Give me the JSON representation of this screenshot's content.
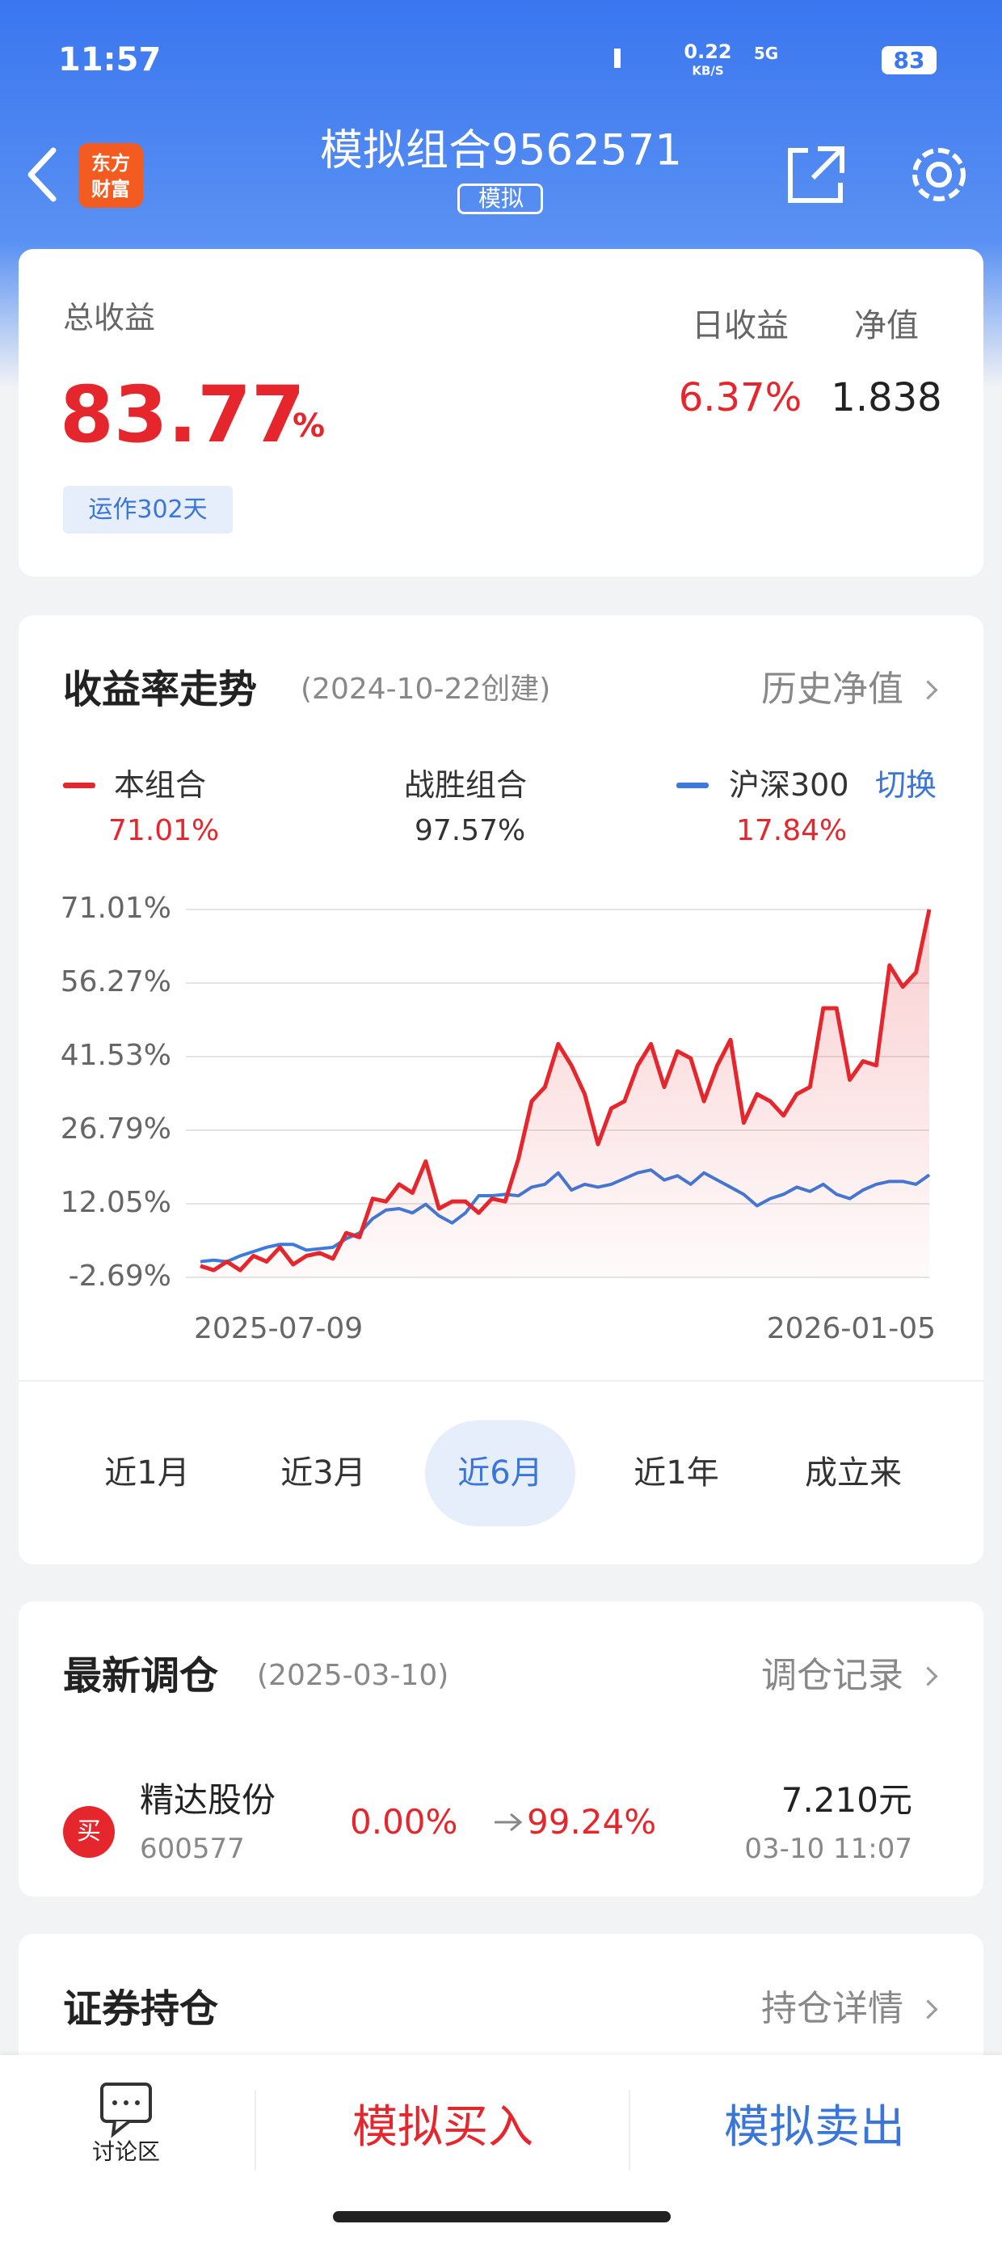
{
  "status_bar": {
    "time": "11:57",
    "net_speed": "0.22",
    "net_unit": "KB/S",
    "network": "5G",
    "battery": "83"
  },
  "header": {
    "title": "模拟组合9562571",
    "badge": "模拟",
    "logo": [
      "东方",
      "财富"
    ]
  },
  "summary": {
    "total_label": "总收益",
    "total_value": "83.77",
    "total_unit": "%",
    "daily_label": "日收益",
    "daily_value": "6.37%",
    "nav_label": "净值",
    "nav_value": "1.838",
    "running": "运作302天"
  },
  "trend": {
    "title": "收益率走势",
    "created": "(2024-10-22创建)",
    "link": "历史净值",
    "switch": "切换",
    "benchmark": {
      "name": "战胜组合",
      "value": "97.57%"
    },
    "periods": [
      "近1月",
      "近3月",
      "近6月",
      "近1年",
      "成立来"
    ],
    "selected_period": 2
  },
  "chart_data": {
    "type": "line",
    "ylim": [
      -2.69,
      71.01
    ],
    "yticks": [
      {
        "value": 71.01,
        "label": "71.01%"
      },
      {
        "value": 56.27,
        "label": "56.27%"
      },
      {
        "value": 41.53,
        "label": "41.53%"
      },
      {
        "value": 26.79,
        "label": "26.79%"
      },
      {
        "value": 12.05,
        "label": "12.05%"
      },
      {
        "value": -2.69,
        "label": "-2.69%"
      }
    ],
    "grid": true,
    "categories": [
      "2025-07-09",
      null,
      null,
      null,
      null,
      null,
      null,
      null,
      null,
      null,
      null,
      null,
      null,
      null,
      null,
      null,
      null,
      null,
      null,
      null,
      null,
      null,
      null,
      null,
      null,
      null,
      null,
      null,
      null,
      null,
      null,
      null,
      null,
      null,
      null,
      null,
      null,
      null,
      null,
      null,
      null,
      null,
      null,
      null,
      null,
      null,
      null,
      null,
      null,
      null,
      null,
      null,
      null,
      null,
      null,
      "2026-01-05"
    ],
    "series": [
      {
        "name": "本组合",
        "color": "#e5262d",
        "latest": "71.01%",
        "values": [
          -0.4,
          -1.26,
          0.46,
          -1.26,
          1.61,
          0.46,
          3.33,
          -0.11,
          1.61,
          2.19,
          1.04,
          6.2,
          5.34,
          13.08,
          12.51,
          15.95,
          14.23,
          20.54,
          11.08,
          12.51,
          12.51,
          10.22,
          13.08,
          12.51,
          21.11,
          32.59,
          35.45,
          44.06,
          39.76,
          34.02,
          23.98,
          31.15,
          32.59,
          39.76,
          44.06,
          35.45,
          42.62,
          41.19,
          32.59,
          39.76,
          44.92,
          28.28,
          34.02,
          32.59,
          29.72,
          34.02,
          35.45,
          51.23,
          51.23,
          36.89,
          40.62,
          39.76,
          59.83,
          55.53,
          58.4,
          71.01
        ]
      },
      {
        "name": "沪深300",
        "color": "#3a7bdc",
        "latest": "17.84%",
        "values": [
          0.46,
          0.75,
          0.46,
          1.61,
          2.47,
          3.33,
          3.91,
          3.91,
          2.76,
          3.05,
          3.33,
          5.05,
          6.2,
          9.07,
          10.79,
          11.08,
          10.22,
          11.94,
          9.64,
          8.21,
          10.22,
          13.66,
          13.66,
          13.94,
          13.66,
          15.38,
          15.95,
          18.25,
          14.8,
          15.95,
          15.38,
          15.95,
          17.1,
          18.25,
          18.82,
          16.81,
          17.67,
          15.95,
          18.25,
          16.81,
          15.38,
          13.94,
          11.65,
          13.08,
          13.94,
          15.38,
          14.52,
          15.95,
          13.94,
          13.08,
          14.8,
          15.95,
          16.53,
          16.53,
          15.95,
          17.84
        ]
      }
    ]
  },
  "rebalance": {
    "title": "最新调仓",
    "date": "(2025-03-10)",
    "link": "调仓记录",
    "action": "买",
    "stock": "精达股份",
    "code": "600577",
    "from": "0.00%",
    "to": "99.24%",
    "price": "7.210元",
    "time": "03-10  11:07"
  },
  "holdings": {
    "title": "证券持仓",
    "link": "持仓详情"
  },
  "bottom_bar": {
    "discuss": "讨论区",
    "buy": "模拟买入",
    "sell": "模拟卖出"
  }
}
